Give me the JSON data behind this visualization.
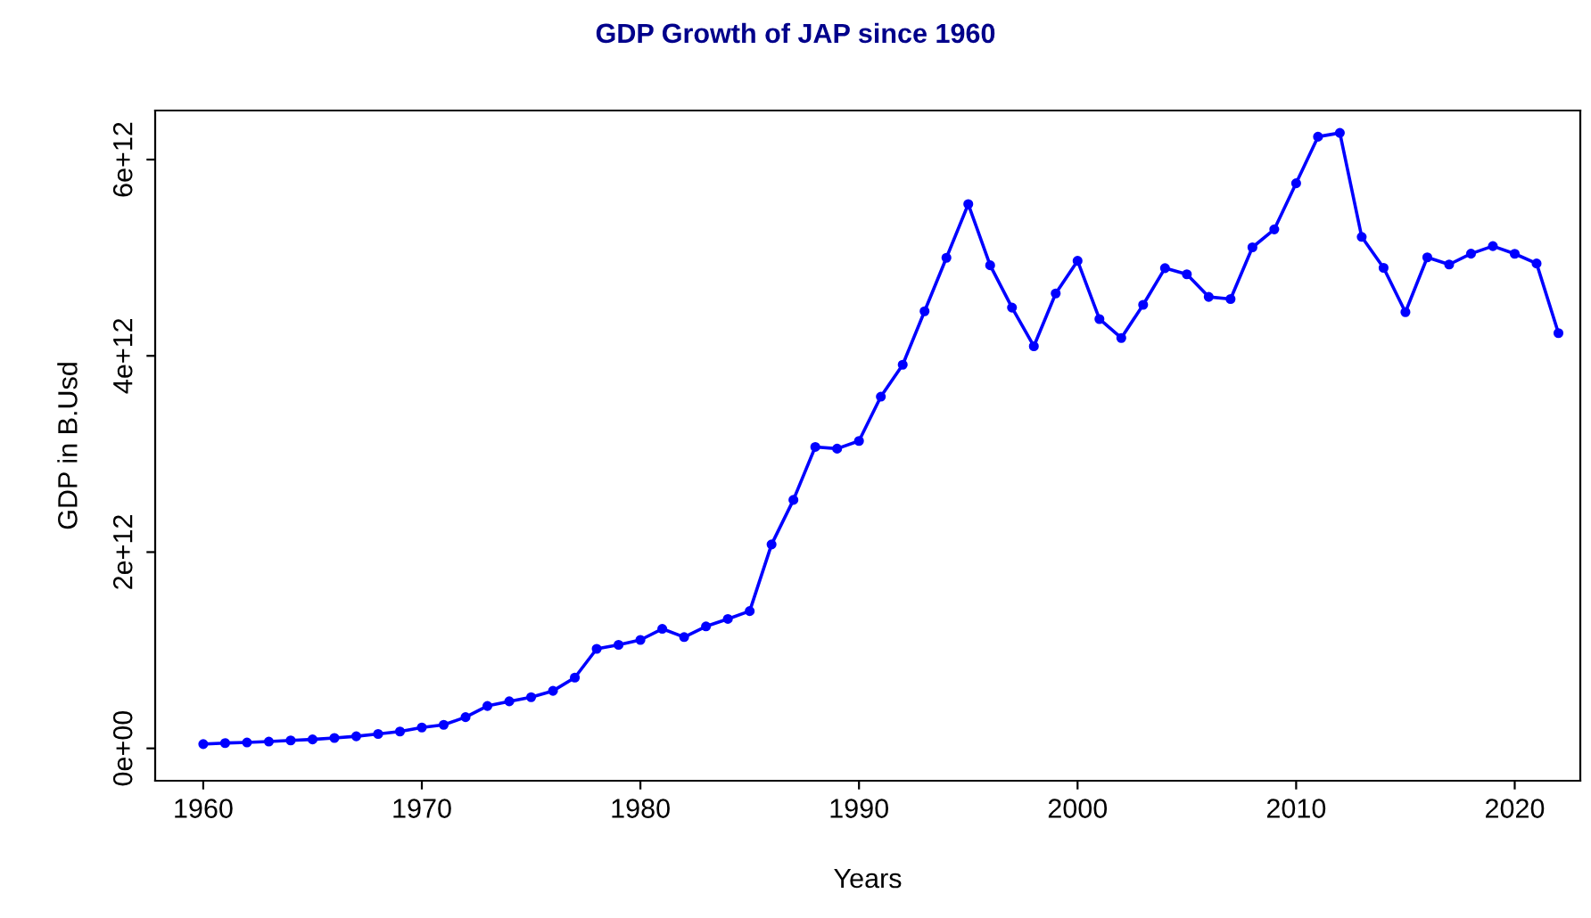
{
  "chart_data": {
    "type": "line",
    "title": "GDP Growth of JAP since 1960",
    "xlabel": "Years",
    "ylabel": "GDP in B.Usd",
    "x": [
      1960,
      1961,
      1962,
      1963,
      1964,
      1965,
      1966,
      1967,
      1968,
      1969,
      1970,
      1971,
      1972,
      1973,
      1974,
      1975,
      1976,
      1977,
      1978,
      1979,
      1980,
      1981,
      1982,
      1983,
      1984,
      1985,
      1986,
      1987,
      1988,
      1989,
      1990,
      1991,
      1992,
      1993,
      1994,
      1995,
      1996,
      1997,
      1998,
      1999,
      2000,
      2001,
      2002,
      2003,
      2004,
      2005,
      2006,
      2007,
      2008,
      2009,
      2010,
      2011,
      2012,
      2013,
      2014,
      2015,
      2016,
      2017,
      2018,
      2019,
      2020,
      2021,
      2022
    ],
    "series": [
      {
        "color": "#0000ff",
        "values": [
          44000000000.0,
          54000000000.0,
          60000000000.0,
          69000000000.0,
          81000000000.0,
          91000000000.0,
          106000000000.0,
          123000000000.0,
          147000000000.0,
          172000000000.0,
          213000000000.0,
          240000000000.0,
          318000000000.0,
          432000000000.0,
          479000000000.0,
          521000000000.0,
          586000000000.0,
          721000000000.0,
          1014000000000.0,
          1055000000000.0,
          1105000000000.0,
          1218000000000.0,
          1134000000000.0,
          1243000000000.0,
          1319000000000.0,
          1399000000000.0,
          2078000000000.0,
          2532000000000.0,
          3072000000000.0,
          3054000000000.0,
          3133000000000.0,
          3584000000000.0,
          3909000000000.0,
          4454000000000.0,
          4999000000000.0,
          5546000000000.0,
          4923000000000.0,
          4492000000000.0,
          4098000000000.0,
          4636000000000.0,
          4968000000000.0,
          4375000000000.0,
          4182000000000.0,
          4520000000000.0,
          4894000000000.0,
          4831000000000.0,
          4601000000000.0,
          4579000000000.0,
          5106000000000.0,
          5289000000000.0,
          5759000000000.0,
          6233000000000.0,
          6272000000000.0,
          5212000000000.0,
          4897000000000.0,
          4445000000000.0,
          5004000000000.0,
          4931000000000.0,
          5041000000000.0,
          5118000000000.0,
          5040000000000.0,
          4941000000000.0,
          4232000000000.0
        ]
      }
    ],
    "xlim": [
      1957.8,
      2023.0
    ],
    "xticks": [
      1960,
      1970,
      1980,
      1990,
      2000,
      2010,
      2020
    ],
    "ylim": [
      -330000000000.0,
      6500000000000.0
    ],
    "yticks": [
      {
        "value": 0,
        "label": "0e+00"
      },
      {
        "value": 2000000000000.0,
        "label": "2e+12"
      },
      {
        "value": 4000000000000.0,
        "label": "4e+12"
      },
      {
        "value": 6000000000000.0,
        "label": "6e+12"
      }
    ],
    "marker": "circle",
    "line_style": "solid",
    "grid": false,
    "legend": false
  }
}
